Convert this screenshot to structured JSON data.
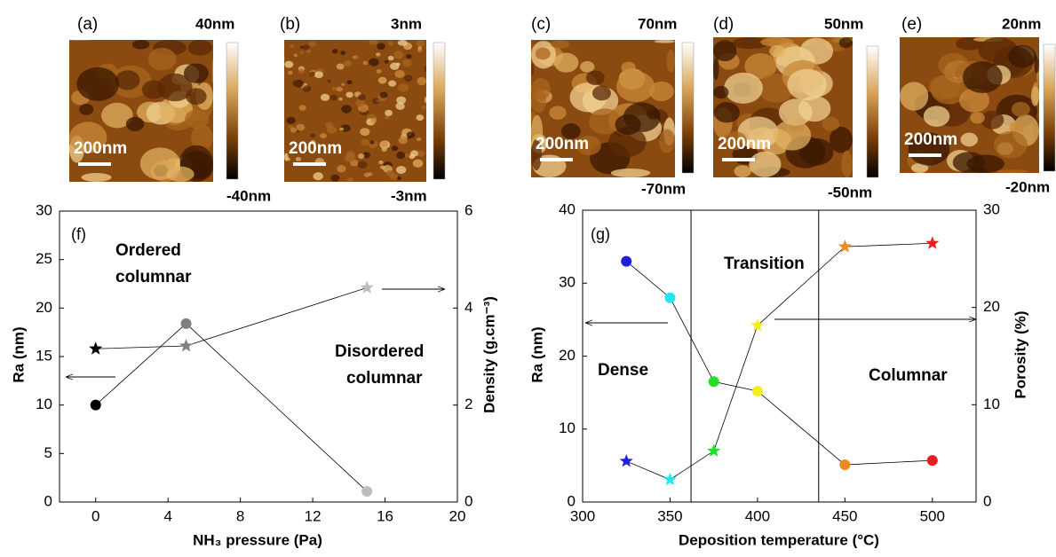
{
  "panels": [
    {
      "label": "(a)",
      "max": "40nm",
      "min": "-40nm",
      "scale": "200nm"
    },
    {
      "label": "(b)",
      "max": "3nm",
      "min": "-3nm",
      "scale": "200nm"
    },
    {
      "label": "(c)",
      "max": "70nm",
      "min": "-70nm",
      "scale": "200nm"
    },
    {
      "label": "(d)",
      "max": "50nm",
      "min": "-50nm",
      "scale": "200nm"
    },
    {
      "label": "(e)",
      "max": "20nm",
      "min": "-20nm",
      "scale": "200nm"
    }
  ],
  "chart_data": [
    {
      "type": "line",
      "xlabel": "NH₃ pressure (Pa)",
      "ylabel": "Ra (nm)",
      "y2label": "Density (g.cm⁻³)",
      "xlim": [
        -2,
        20
      ],
      "xticks": [
        0,
        4,
        8,
        12,
        16,
        20
      ],
      "ylim": [
        0,
        30
      ],
      "yticks": [
        0,
        5,
        10,
        15,
        20,
        25,
        30
      ],
      "y2lim": [
        0,
        6
      ],
      "y2ticks": [
        0,
        2,
        4,
        6
      ],
      "annotations": [
        "(f)",
        "Ordered",
        "columnar",
        "Disordered",
        "columnar"
      ],
      "series": [
        {
          "marker": "circle",
          "axis": "y",
          "x": [
            0,
            5,
            15
          ],
          "values": [
            10,
            18.4,
            1.1
          ],
          "colors": [
            "#000000",
            "#808080",
            "#bdbdbd"
          ]
        },
        {
          "marker": "star",
          "axis": "y2",
          "x": [
            0,
            5,
            15
          ],
          "values": [
            3.16,
            3.22,
            4.42
          ],
          "colors": [
            "#000000",
            "#808080",
            "#bdbdbd"
          ]
        }
      ]
    },
    {
      "type": "line",
      "xlabel": "Deposition temperature (°C)",
      "ylabel": "Ra (nm)",
      "y2label": "Porosity (%)",
      "xlim": [
        300,
        525
      ],
      "xticks": [
        300,
        350,
        400,
        450,
        500
      ],
      "ylim": [
        0,
        40
      ],
      "yticks": [
        0,
        10,
        20,
        30,
        40
      ],
      "y2lim": [
        0,
        30
      ],
      "y2ticks": [
        0,
        10,
        20,
        30
      ],
      "vlines": [
        362,
        435
      ],
      "annotations": [
        "(g)",
        "Transition",
        "Dense",
        "Columnar"
      ],
      "series": [
        {
          "marker": "circle",
          "axis": "y",
          "x": [
            325,
            350,
            375,
            400,
            450,
            500
          ],
          "values": [
            33,
            28,
            16.5,
            15.2,
            5.1,
            5.7
          ],
          "colors": [
            "#1f1fdc",
            "#22e5f0",
            "#22e022",
            "#f0f020",
            "#f08a20",
            "#e61e1e"
          ]
        },
        {
          "marker": "star",
          "axis": "y2",
          "x": [
            325,
            350,
            375,
            400,
            450,
            500
          ],
          "values": [
            4.2,
            2.3,
            5.25,
            18.15,
            26.25,
            26.6
          ],
          "colors": [
            "#1f1fdc",
            "#22e5f0",
            "#22e022",
            "#f0f020",
            "#f08a20",
            "#e61e1e"
          ]
        }
      ]
    }
  ]
}
